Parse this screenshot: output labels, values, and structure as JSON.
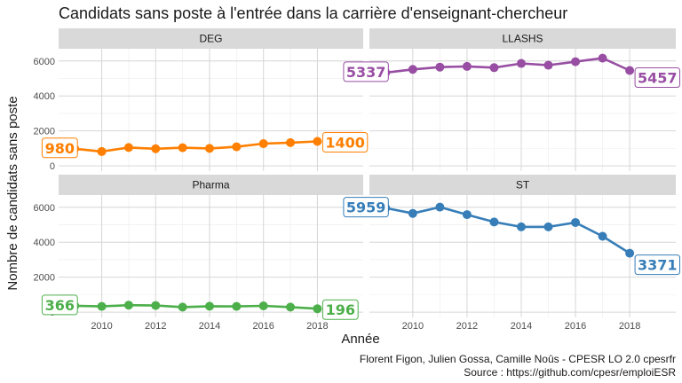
{
  "chart_data": {
    "type": "line",
    "title": "Candidats sans poste à l'entrée dans la carrière d'enseignant-chercheur",
    "xlabel": "Année",
    "ylabel": "Nombre de candidats sans poste",
    "caption": [
      "Florent Figon, Julien Gossa, Camille Noûs - CPESR LO 2.0 cpesrfr",
      "Source : https://github.com/cpesr/emploiESR"
    ],
    "x": [
      2009,
      2010,
      2011,
      2012,
      2013,
      2014,
      2015,
      2016,
      2017,
      2018
    ],
    "x_ticks": [
      2010,
      2012,
      2014,
      2016,
      2018
    ],
    "xlim": [
      2008.4,
      2019.7
    ],
    "y_ticks": [
      0,
      2000,
      4000,
      6000
    ],
    "y_tick_labels": [
      "0",
      "2000",
      "4000",
      "6000"
    ],
    "ylim": [
      -300,
      6700
    ],
    "grid": true,
    "facets": [
      {
        "name": "DEG",
        "color": "#ff7f00",
        "values": [
          980,
          820,
          1050,
          980,
          1040,
          1000,
          1090,
          1270,
          1330,
          1400
        ],
        "start_label": "980",
        "end_label": "1400"
      },
      {
        "name": "LLASHS",
        "color": "#984ea3",
        "values": [
          5337,
          5520,
          5650,
          5690,
          5620,
          5860,
          5760,
          5960,
          6160,
          5457
        ],
        "start_label": "5337",
        "end_label": "5457"
      },
      {
        "name": "Pharma",
        "color": "#4daf4a",
        "values": [
          366,
          330,
          400,
          380,
          290,
          340,
          330,
          360,
          290,
          196
        ],
        "start_label": "366",
        "end_label": "196"
      },
      {
        "name": "ST",
        "color": "#377eb8",
        "values": [
          5959,
          5650,
          6010,
          5580,
          5160,
          4880,
          4880,
          5130,
          4340,
          3371
        ],
        "start_label": "5959",
        "end_label": "3371"
      }
    ]
  }
}
